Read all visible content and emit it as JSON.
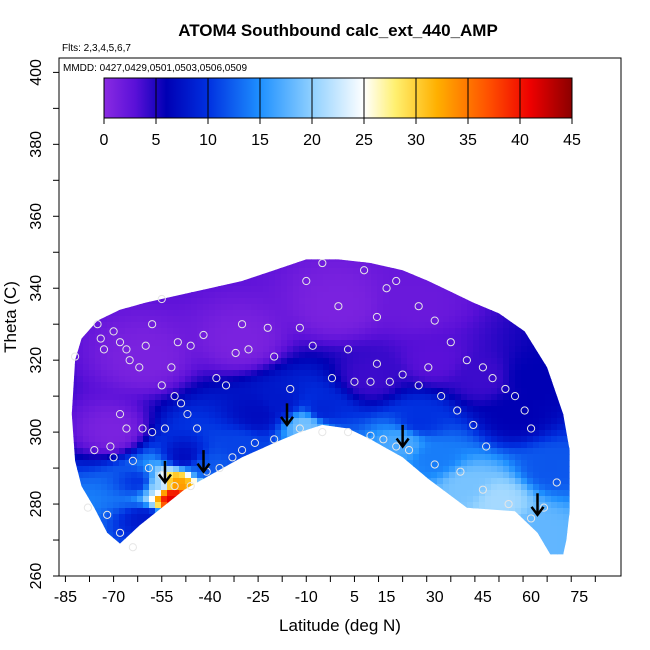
{
  "chart_data": {
    "type": "heatmap",
    "title": "ATOM4 Southbound calc_ext_440_AMP",
    "subtitle_flights": "Flts: 2,3,4,5,6,7",
    "subtitle_dates": "MMDD: 0427,0429,0501,0503,0506,0509",
    "xlabel": "Latitude (deg N)",
    "ylabel": "Theta (C)",
    "xlim": [
      -87,
      88
    ],
    "ylim": [
      260,
      404
    ],
    "x_ticks": [
      -85,
      -70,
      -55,
      -40,
      -25,
      -10,
      5,
      15,
      30,
      45,
      60,
      75
    ],
    "x_tick_labels": [
      "-85",
      "-70",
      "-55",
      "-40",
      "-25",
      "-10",
      "5",
      "15",
      "30",
      "45",
      "60",
      "75"
    ],
    "y_ticks": [
      260,
      280,
      300,
      320,
      340,
      360,
      380,
      400
    ],
    "y_tick_labels": [
      "260",
      "280",
      "300",
      "320",
      "340",
      "360",
      "380",
      "400"
    ],
    "colorbar": {
      "range": [
        0,
        45
      ],
      "ticks": [
        0,
        5,
        10,
        15,
        20,
        25,
        30,
        35,
        40,
        45
      ],
      "tick_labels": [
        "0",
        "5",
        "10",
        "15",
        "20",
        "25",
        "30",
        "35",
        "40",
        "45"
      ],
      "stops": [
        {
          "v": 0,
          "color": "#8a2be2"
        },
        {
          "v": 3,
          "color": "#5a10d8"
        },
        {
          "v": 6,
          "color": "#0000b4"
        },
        {
          "v": 10,
          "color": "#0030e0"
        },
        {
          "v": 15,
          "color": "#1e90ff"
        },
        {
          "v": 20,
          "color": "#8fd0ff"
        },
        {
          "v": 25,
          "color": "#ffffff"
        },
        {
          "v": 28,
          "color": "#fff070"
        },
        {
          "v": 32,
          "color": "#ffb000"
        },
        {
          "v": 37,
          "color": "#ff5000"
        },
        {
          "v": 41,
          "color": "#ee0000"
        },
        {
          "v": 45,
          "color": "#8b0000"
        }
      ]
    },
    "domain_outline": [
      [
        -82,
        320
      ],
      [
        -80,
        326
      ],
      [
        -75,
        331
      ],
      [
        -68,
        334
      ],
      [
        -60,
        336
      ],
      [
        -50,
        338
      ],
      [
        -40,
        340
      ],
      [
        -30,
        342
      ],
      [
        -20,
        345
      ],
      [
        -10,
        348
      ],
      [
        0,
        348
      ],
      [
        10,
        347
      ],
      [
        20,
        345
      ],
      [
        28,
        342
      ],
      [
        35,
        339
      ],
      [
        42,
        336
      ],
      [
        50,
        333
      ],
      [
        58,
        328
      ],
      [
        65,
        318
      ],
      [
        70,
        305
      ],
      [
        72,
        295
      ],
      [
        72,
        278
      ],
      [
        71,
        270
      ],
      [
        70,
        266
      ],
      [
        66,
        266
      ],
      [
        62,
        272
      ],
      [
        55,
        278
      ],
      [
        40,
        279
      ],
      [
        28,
        287
      ],
      [
        20,
        293
      ],
      [
        10,
        298
      ],
      [
        3,
        301
      ],
      [
        -5,
        302
      ],
      [
        -12,
        300
      ],
      [
        -20,
        297
      ],
      [
        -30,
        293
      ],
      [
        -40,
        288
      ],
      [
        -48,
        284
      ],
      [
        -55,
        279
      ],
      [
        -62,
        274
      ],
      [
        -68,
        269
      ],
      [
        -72,
        272
      ],
      [
        -76,
        279
      ],
      [
        -80,
        285
      ],
      [
        -82,
        292
      ],
      [
        -83,
        305
      ]
    ],
    "field_features": [
      {
        "lat": -52,
        "theta": 282,
        "value": 42
      },
      {
        "lat": -50,
        "theta": 286,
        "value": 33
      },
      {
        "lat": -56,
        "theta": 285,
        "value": 20
      },
      {
        "lat": -62,
        "theta": 286,
        "value": 10
      },
      {
        "lat": -60,
        "theta": 276,
        "value": 8
      },
      {
        "lat": -42,
        "theta": 290,
        "value": 12
      },
      {
        "lat": -48,
        "theta": 293,
        "value": 7
      },
      {
        "lat": -30,
        "theta": 296,
        "value": 11
      },
      {
        "lat": -25,
        "theta": 305,
        "value": 7
      },
      {
        "lat": -18,
        "theta": 308,
        "value": 8
      },
      {
        "lat": -10,
        "theta": 302,
        "value": 19
      },
      {
        "lat": -5,
        "theta": 306,
        "value": 9
      },
      {
        "lat": 20,
        "theta": 297,
        "value": 17
      },
      {
        "lat": 25,
        "theta": 303,
        "value": 10
      },
      {
        "lat": 30,
        "theta": 293,
        "value": 14
      },
      {
        "lat": 40,
        "theta": 285,
        "value": 19
      },
      {
        "lat": 50,
        "theta": 281,
        "value": 21
      },
      {
        "lat": 62,
        "theta": 272,
        "value": 18
      },
      {
        "lat": 66,
        "theta": 290,
        "value": 12
      },
      {
        "lat": 55,
        "theta": 305,
        "value": 6
      },
      {
        "lat": 45,
        "theta": 315,
        "value": 4
      },
      {
        "lat": 30,
        "theta": 320,
        "value": 3
      },
      {
        "lat": 10,
        "theta": 315,
        "value": 4
      },
      {
        "lat": -70,
        "theta": 300,
        "value": 1
      },
      {
        "lat": -60,
        "theta": 320,
        "value": 1
      },
      {
        "lat": -30,
        "theta": 325,
        "value": 1
      },
      {
        "lat": 0,
        "theta": 335,
        "value": 1
      },
      {
        "lat": 25,
        "theta": 335,
        "value": 2
      },
      {
        "lat": 60,
        "theta": 315,
        "value": 6
      }
    ],
    "sample_points": [
      [
        -82,
        321
      ],
      [
        -75,
        330
      ],
      [
        -74,
        326
      ],
      [
        -73,
        323
      ],
      [
        -70,
        328
      ],
      [
        -68,
        325
      ],
      [
        -66,
        323
      ],
      [
        -65,
        320
      ],
      [
        -62,
        318
      ],
      [
        -60,
        324
      ],
      [
        -58,
        330
      ],
      [
        -55,
        337
      ],
      [
        -52,
        318
      ],
      [
        -50,
        325
      ],
      [
        -46,
        324
      ],
      [
        -42,
        327
      ],
      [
        -38,
        315
      ],
      [
        -35,
        313
      ],
      [
        -32,
        322
      ],
      [
        -30,
        330
      ],
      [
        -28,
        323
      ],
      [
        -22,
        329
      ],
      [
        -12,
        329
      ],
      [
        -8,
        324
      ],
      [
        0,
        335
      ],
      [
        3,
        323
      ],
      [
        -20,
        321
      ],
      [
        -15,
        312
      ],
      [
        -55,
        313
      ],
      [
        -51,
        310
      ],
      [
        -49,
        308
      ],
      [
        -47,
        305
      ],
      [
        -44,
        301
      ],
      [
        -54,
        301
      ],
      [
        -58,
        300
      ],
      [
        -61,
        301
      ],
      [
        -68,
        305
      ],
      [
        -66,
        301
      ],
      [
        -71,
        296
      ],
      [
        -76,
        295
      ],
      [
        -70,
        293
      ],
      [
        -64,
        292
      ],
      [
        -59,
        290
      ],
      [
        -55,
        288
      ],
      [
        -51,
        285
      ],
      [
        -46,
        285
      ],
      [
        -41,
        289
      ],
      [
        -37,
        290
      ],
      [
        -33,
        293
      ],
      [
        -30,
        295
      ],
      [
        -26,
        297
      ],
      [
        -20,
        298
      ],
      [
        -12,
        301
      ],
      [
        -5,
        300
      ],
      [
        3,
        300
      ],
      [
        10,
        299
      ],
      [
        14,
        298
      ],
      [
        18,
        296
      ],
      [
        22,
        295
      ],
      [
        30,
        291
      ],
      [
        38,
        289
      ],
      [
        45,
        284
      ],
      [
        53,
        280
      ],
      [
        60,
        276
      ],
      [
        64,
        279
      ],
      [
        68,
        286
      ],
      [
        -78,
        279
      ],
      [
        -72,
        277
      ],
      [
        -68,
        272
      ],
      [
        -64,
        268
      ],
      [
        -5,
        347
      ],
      [
        8,
        345
      ],
      [
        15,
        340
      ],
      [
        18,
        342
      ],
      [
        25,
        335
      ],
      [
        30,
        331
      ],
      [
        35,
        325
      ],
      [
        40,
        320
      ],
      [
        45,
        318
      ],
      [
        48,
        315
      ],
      [
        52,
        312
      ],
      [
        55,
        310
      ],
      [
        58,
        306
      ],
      [
        60,
        301
      ],
      [
        42,
        302
      ],
      [
        46,
        296
      ],
      [
        37,
        306
      ],
      [
        32,
        310
      ],
      [
        25,
        313
      ],
      [
        16,
        314
      ],
      [
        10,
        314
      ],
      [
        5,
        314
      ],
      [
        -2,
        315
      ],
      [
        20,
        316
      ],
      [
        28,
        318
      ],
      [
        12,
        319
      ],
      [
        -10,
        342
      ],
      [
        12,
        332
      ]
    ],
    "arrows": [
      {
        "lat": -54,
        "theta": 286
      },
      {
        "lat": -42,
        "theta": 289
      },
      {
        "lat": -16,
        "theta": 302
      },
      {
        "lat": 20,
        "theta": 296
      },
      {
        "lat": 62,
        "theta": 277
      }
    ]
  }
}
